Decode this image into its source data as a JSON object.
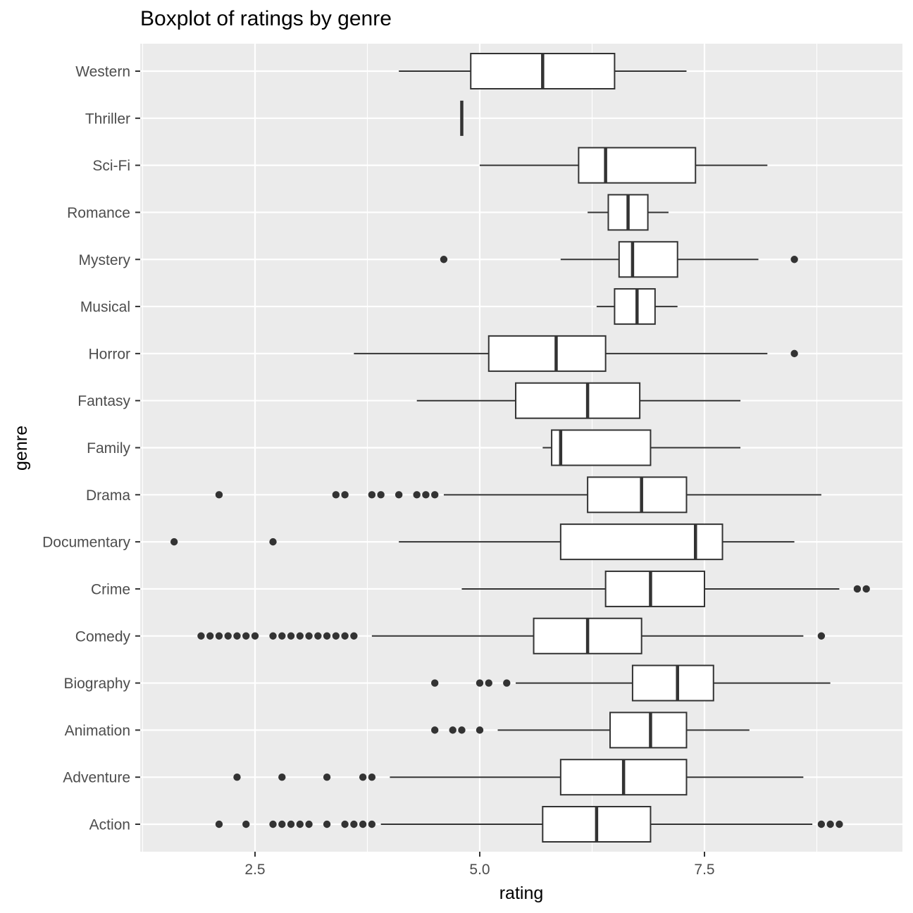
{
  "chart_data": {
    "type": "boxplot",
    "title": "Boxplot of ratings by genre",
    "xlabel": "rating",
    "ylabel": "genre",
    "xlim": [
      1.35,
      9.6
    ],
    "x_ticks": [
      2.5,
      5.0,
      7.5
    ],
    "x_tick_labels": [
      "2.5",
      "5.0",
      "7.5"
    ],
    "grid": true,
    "colors": {
      "panel": "#ebebeb",
      "grid": "#ffffff",
      "box_fill": "#ffffff",
      "box_stroke": "#333333",
      "tick_text": "#4d4d4d"
    },
    "categories": [
      "Action",
      "Adventure",
      "Animation",
      "Biography",
      "Comedy",
      "Crime",
      "Documentary",
      "Drama",
      "Family",
      "Fantasy",
      "Horror",
      "Musical",
      "Mystery",
      "Romance",
      "Sci-Fi",
      "Thriller",
      "Western"
    ],
    "boxes": [
      {
        "genre": "Action",
        "whisker_low": 3.9,
        "q1": 5.7,
        "median": 6.3,
        "q3": 6.9,
        "whisker_high": 8.7,
        "outliers": [
          2.1,
          2.4,
          2.7,
          2.8,
          2.9,
          3.0,
          3.1,
          3.3,
          3.5,
          3.6,
          3.7,
          3.8,
          8.8,
          8.9,
          9.0
        ]
      },
      {
        "genre": "Adventure",
        "whisker_low": 4.0,
        "q1": 5.9,
        "median": 6.6,
        "q3": 7.3,
        "whisker_high": 8.6,
        "outliers": [
          2.3,
          2.8,
          3.3,
          3.7,
          3.8
        ]
      },
      {
        "genre": "Animation",
        "whisker_low": 5.2,
        "q1": 6.45,
        "median": 6.9,
        "q3": 7.3,
        "whisker_high": 8.0,
        "outliers": [
          4.5,
          4.7,
          4.8,
          5.0
        ]
      },
      {
        "genre": "Biography",
        "whisker_low": 5.4,
        "q1": 6.7,
        "median": 7.2,
        "q3": 7.6,
        "whisker_high": 8.9,
        "outliers": [
          4.5,
          5.0,
          5.1,
          5.3
        ]
      },
      {
        "genre": "Comedy",
        "whisker_low": 3.8,
        "q1": 5.6,
        "median": 6.2,
        "q3": 6.8,
        "whisker_high": 8.6,
        "outliers": [
          1.9,
          2.0,
          2.1,
          2.2,
          2.3,
          2.4,
          2.5,
          2.7,
          2.8,
          2.9,
          3.0,
          3.1,
          3.2,
          3.3,
          3.4,
          3.5,
          3.6,
          8.8
        ]
      },
      {
        "genre": "Crime",
        "whisker_low": 4.8,
        "q1": 6.4,
        "median": 6.9,
        "q3": 7.5,
        "whisker_high": 9.0,
        "outliers": [
          9.2,
          9.3
        ]
      },
      {
        "genre": "Documentary",
        "whisker_low": 4.1,
        "q1": 5.9,
        "median": 7.4,
        "q3": 7.7,
        "whisker_high": 8.5,
        "outliers": [
          1.6,
          2.7
        ]
      },
      {
        "genre": "Drama",
        "whisker_low": 4.6,
        "q1": 6.2,
        "median": 6.8,
        "q3": 7.3,
        "whisker_high": 8.8,
        "outliers": [
          2.1,
          3.4,
          3.5,
          3.8,
          3.9,
          4.1,
          4.3,
          4.4,
          4.5
        ]
      },
      {
        "genre": "Family",
        "whisker_low": 5.7,
        "q1": 5.8,
        "median": 5.9,
        "q3": 6.9,
        "whisker_high": 7.9,
        "outliers": []
      },
      {
        "genre": "Fantasy",
        "whisker_low": 4.3,
        "q1": 5.4,
        "median": 6.2,
        "q3": 6.78,
        "whisker_high": 7.9,
        "outliers": []
      },
      {
        "genre": "Horror",
        "whisker_low": 3.6,
        "q1": 5.1,
        "median": 5.85,
        "q3": 6.4,
        "whisker_high": 8.2,
        "outliers": [
          8.5
        ]
      },
      {
        "genre": "Musical",
        "whisker_low": 6.3,
        "q1": 6.5,
        "median": 6.75,
        "q3": 6.95,
        "whisker_high": 7.2,
        "outliers": []
      },
      {
        "genre": "Mystery",
        "whisker_low": 5.9,
        "q1": 6.55,
        "median": 6.7,
        "q3": 7.2,
        "whisker_high": 8.1,
        "outliers": [
          4.6,
          8.5
        ]
      },
      {
        "genre": "Romance",
        "whisker_low": 6.2,
        "q1": 6.43,
        "median": 6.65,
        "q3": 6.87,
        "whisker_high": 7.1,
        "outliers": []
      },
      {
        "genre": "Sci-Fi",
        "whisker_low": 5.0,
        "q1": 6.1,
        "median": 6.4,
        "q3": 7.4,
        "whisker_high": 8.2,
        "outliers": []
      },
      {
        "genre": "Thriller",
        "whisker_low": 4.8,
        "q1": 4.8,
        "median": 4.8,
        "q3": 4.8,
        "whisker_high": 4.8,
        "outliers": []
      },
      {
        "genre": "Western",
        "whisker_low": 4.1,
        "q1": 4.9,
        "median": 5.7,
        "q3": 6.5,
        "whisker_high": 7.3,
        "outliers": []
      }
    ]
  }
}
